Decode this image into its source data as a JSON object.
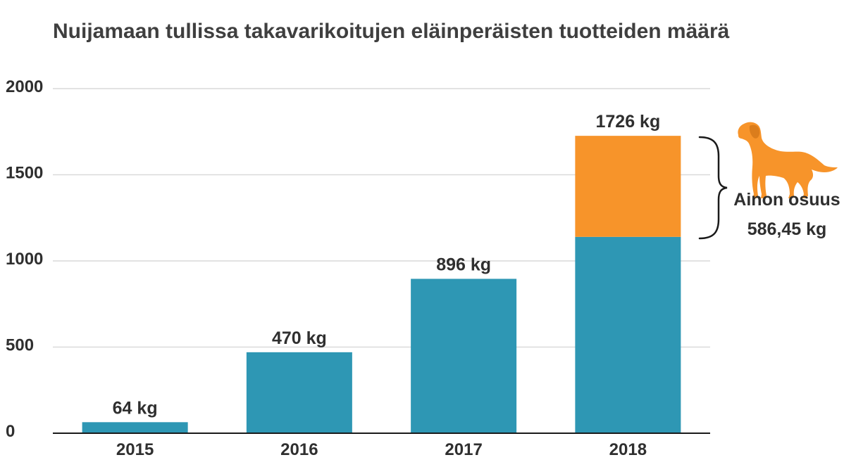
{
  "chart_data": {
    "type": "bar",
    "stacked": true,
    "title": "Nuijamaan tullissa takavarikoitujen eläinperäisten tuotteiden määrä",
    "xlabel": "",
    "ylabel": "",
    "categories": [
      "2015",
      "2016",
      "2017",
      "2018"
    ],
    "series": [
      {
        "values": [
          64,
          470,
          896,
          1139.55
        ],
        "color": "#2e97b4"
      },
      {
        "values": [
          0,
          0,
          0,
          586.45
        ],
        "color": "#f7942a"
      }
    ],
    "totals": [
      64,
      470,
      896,
      1726
    ],
    "data_labels": [
      "64 kg",
      "470 kg",
      "896 kg",
      "1726 kg"
    ],
    "ylim": [
      0,
      2000
    ],
    "yticks": [
      0,
      500,
      1000,
      1500,
      2000
    ],
    "grid": true,
    "annotation": {
      "line1": "Ainon osuus",
      "line2": "586,45 kg",
      "icon": "dog-icon",
      "color": "#f7942a"
    }
  }
}
